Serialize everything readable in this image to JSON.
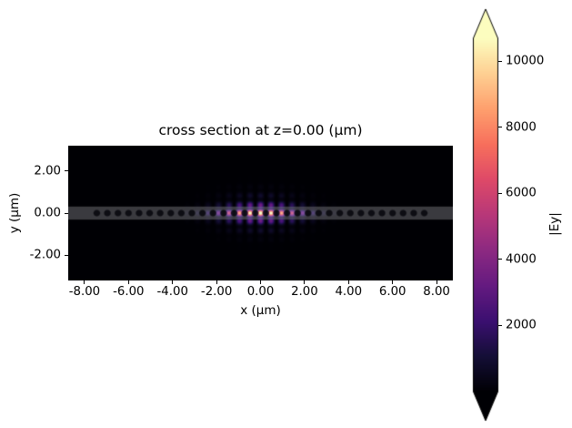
{
  "figure": {
    "background_color": "#ffffff",
    "text_color": "#000000"
  },
  "chart_data": {
    "type": "heatmap",
    "title": "cross section at z=0.00 (μm)",
    "xlabel": "x (μm)",
    "ylabel": "y (μm)",
    "xlim": [
      -8.74,
      8.74
    ],
    "ylim": [
      -3.2,
      3.2
    ],
    "grid": false,
    "x_ticks": [
      {
        "value": -8,
        "label": "-8.00"
      },
      {
        "value": -6,
        "label": "-6.00"
      },
      {
        "value": -4,
        "label": "-4.00"
      },
      {
        "value": -2,
        "label": "-2.00"
      },
      {
        "value": 0,
        "label": "0.00"
      },
      {
        "value": 2,
        "label": "2.00"
      },
      {
        "value": 4,
        "label": "4.00"
      },
      {
        "value": 6,
        "label": "6.00"
      },
      {
        "value": 8,
        "label": "8.00"
      }
    ],
    "y_ticks": [
      {
        "value": 2,
        "label": "2.00"
      },
      {
        "value": 0,
        "label": "0.00"
      },
      {
        "value": -2,
        "label": "-2.00"
      }
    ],
    "colormap": {
      "name": "magma",
      "stops": [
        "#000004",
        "#140e36",
        "#3b0f70",
        "#641a80",
        "#8c2981",
        "#b73779",
        "#de4968",
        "#f76f5c",
        "#fe9f6d",
        "#fecf92",
        "#fcfdbf"
      ]
    },
    "colorbar": {
      "label": "|Ey|",
      "position": "right",
      "extend": "both",
      "vmin": 0,
      "vmax": 10700,
      "ticks": [
        {
          "value": 2000,
          "label": "2000"
        },
        {
          "value": 4000,
          "label": "4000"
        },
        {
          "value": 6000,
          "label": "6000"
        },
        {
          "value": 8000,
          "label": "8000"
        },
        {
          "value": 10000,
          "label": "10000"
        }
      ]
    },
    "field": {
      "description": "Cavity mode |Ey| localized at x=0, y=0: vertical lobes with period equal to the hole lattice under a Gaussian envelope, with weak vertical fringes above and below the waveguide",
      "peak_value": 12000,
      "envelope_sigma_um": 1.7,
      "lobe_period_um": 0.48,
      "lobe_sharpness": 0.95,
      "vertical_core_sigma_um": 0.3,
      "vertical_fringe_period_um": 0.43,
      "vertical_tail_sigma_um": 0.8
    },
    "structure": {
      "waveguide_stripe": {
        "y_halfwidth_um": 0.31,
        "overlay_color": "#e6e6ee",
        "overlay_alpha": 0.25
      },
      "holes": {
        "radius_um": 0.15,
        "first_offset_um": 0.24,
        "period_um": 0.48,
        "count_per_side": 16,
        "overlay_color": "#020208",
        "overlay_alpha": 0.8
      }
    }
  }
}
